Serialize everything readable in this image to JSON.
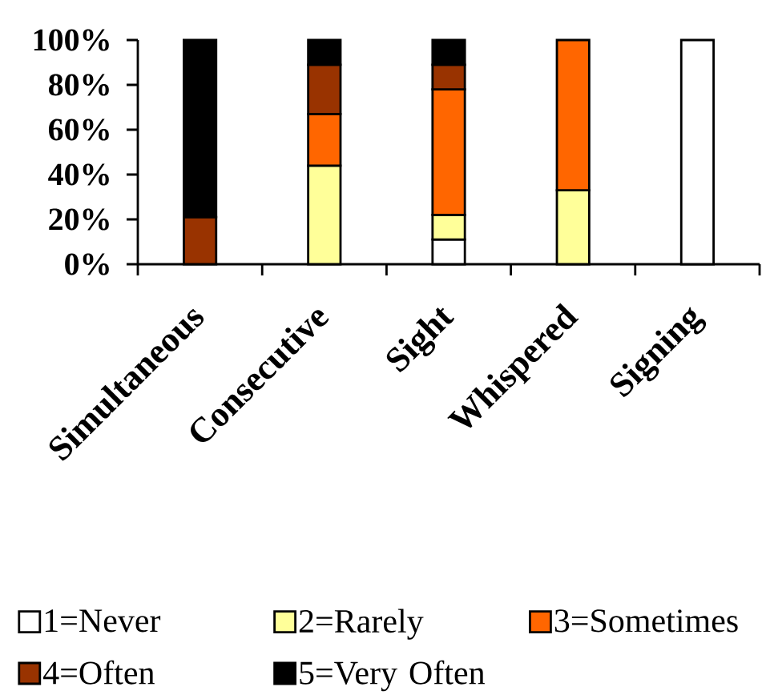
{
  "chart_data": {
    "type": "bar",
    "stacked": true,
    "categories": [
      "Simultaneous",
      "Consecutive",
      "Sight",
      "Whispered",
      "Signing"
    ],
    "series": [
      {
        "name": "1=Never",
        "color": "#ffffff",
        "values": [
          null,
          null,
          11,
          null,
          100
        ]
      },
      {
        "name": "2=Rarely",
        "color": "#ffff99",
        "values": [
          null,
          44,
          11,
          33,
          null
        ]
      },
      {
        "name": "3=Sometimes",
        "color": "#ff6600",
        "values": [
          null,
          23,
          56,
          67,
          null
        ]
      },
      {
        "name": "4=Often",
        "color": "#993300",
        "values": [
          21,
          22,
          11,
          null,
          null
        ]
      },
      {
        "name": "5=Very Often",
        "color": "#000000",
        "values": [
          79,
          11,
          11,
          null,
          null
        ]
      }
    ],
    "ylim": [
      0,
      100
    ],
    "yticks": [
      {
        "value": 0,
        "label": "0%"
      },
      {
        "value": 20,
        "label": "20%"
      },
      {
        "value": 40,
        "label": "40%"
      },
      {
        "value": 60,
        "label": "60%"
      },
      {
        "value": 80,
        "label": "80%"
      },
      {
        "value": 100,
        "label": "100%"
      }
    ],
    "legend": "bottom",
    "grid": false
  }
}
